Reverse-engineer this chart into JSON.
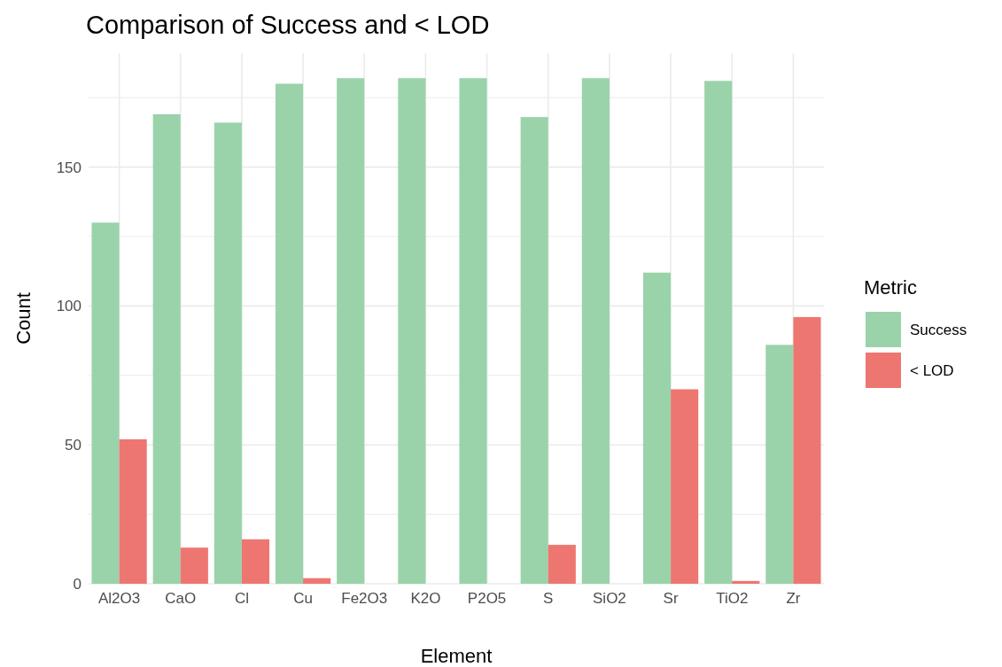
{
  "chart_data": {
    "type": "bar",
    "title": "Comparison of Success and < LOD",
    "xlabel": "Element",
    "ylabel": "Count",
    "legend_title": "Metric",
    "legend": "right",
    "categories": [
      "Al2O3",
      "CaO",
      "Cl",
      "Cu",
      "Fe2O3",
      "K2O",
      "P2O5",
      "S",
      "SiO2",
      "Sr",
      "TiO2",
      "Zr"
    ],
    "series": [
      {
        "name": "Success",
        "color": "#9ad3aa",
        "values": [
          130,
          169,
          166,
          180,
          182,
          182,
          182,
          168,
          182,
          112,
          181,
          86
        ]
      },
      {
        "name": "< LOD",
        "color": "#ee7671",
        "values": [
          52,
          13,
          16,
          2,
          0,
          0,
          0,
          14,
          0,
          70,
          1,
          96
        ]
      }
    ],
    "ylim": [
      0,
      191
    ],
    "yticks": [
      0,
      {
        "value": 25,
        "label": null
      },
      50,
      {
        "value": 75,
        "label": null
      },
      100,
      {
        "value": 125,
        "label": null
      },
      150,
      {
        "value": 175,
        "label": null
      }
    ],
    "grid": true
  }
}
